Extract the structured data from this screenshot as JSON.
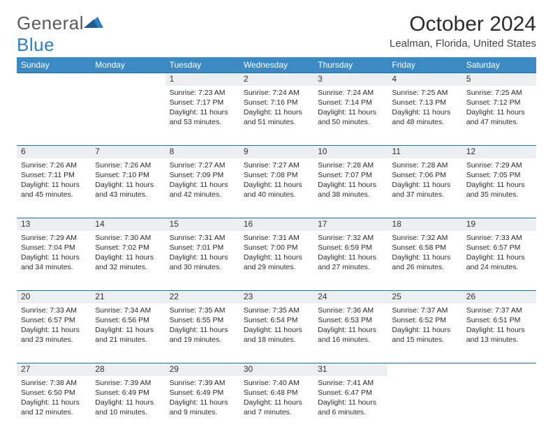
{
  "logo": {
    "word1": "General",
    "word2": "Blue"
  },
  "title": "October 2024",
  "location": "Lealman, Florida, United States",
  "theme": {
    "header_bg": "#3b8ac4",
    "header_text": "#ffffff",
    "daynum_bg": "#eceeef",
    "rule_color": "#2f6a99",
    "page_bg": "#ffffff",
    "text": "#2a2a2a",
    "logo_gray": "#5a5a5a",
    "logo_blue": "#2f7ec2"
  },
  "day_headers": [
    "Sunday",
    "Monday",
    "Tuesday",
    "Wednesday",
    "Thursday",
    "Friday",
    "Saturday"
  ],
  "weeks": [
    [
      null,
      null,
      {
        "n": "1",
        "sunrise": "Sunrise: 7:23 AM",
        "sunset": "Sunset: 7:17 PM",
        "day1": "Daylight: 11 hours",
        "day2": "and 53 minutes."
      },
      {
        "n": "2",
        "sunrise": "Sunrise: 7:24 AM",
        "sunset": "Sunset: 7:16 PM",
        "day1": "Daylight: 11 hours",
        "day2": "and 51 minutes."
      },
      {
        "n": "3",
        "sunrise": "Sunrise: 7:24 AM",
        "sunset": "Sunset: 7:14 PM",
        "day1": "Daylight: 11 hours",
        "day2": "and 50 minutes."
      },
      {
        "n": "4",
        "sunrise": "Sunrise: 7:25 AM",
        "sunset": "Sunset: 7:13 PM",
        "day1": "Daylight: 11 hours",
        "day2": "and 48 minutes."
      },
      {
        "n": "5",
        "sunrise": "Sunrise: 7:25 AM",
        "sunset": "Sunset: 7:12 PM",
        "day1": "Daylight: 11 hours",
        "day2": "and 47 minutes."
      }
    ],
    [
      {
        "n": "6",
        "sunrise": "Sunrise: 7:26 AM",
        "sunset": "Sunset: 7:11 PM",
        "day1": "Daylight: 11 hours",
        "day2": "and 45 minutes."
      },
      {
        "n": "7",
        "sunrise": "Sunrise: 7:26 AM",
        "sunset": "Sunset: 7:10 PM",
        "day1": "Daylight: 11 hours",
        "day2": "and 43 minutes."
      },
      {
        "n": "8",
        "sunrise": "Sunrise: 7:27 AM",
        "sunset": "Sunset: 7:09 PM",
        "day1": "Daylight: 11 hours",
        "day2": "and 42 minutes."
      },
      {
        "n": "9",
        "sunrise": "Sunrise: 7:27 AM",
        "sunset": "Sunset: 7:08 PM",
        "day1": "Daylight: 11 hours",
        "day2": "and 40 minutes."
      },
      {
        "n": "10",
        "sunrise": "Sunrise: 7:28 AM",
        "sunset": "Sunset: 7:07 PM",
        "day1": "Daylight: 11 hours",
        "day2": "and 38 minutes."
      },
      {
        "n": "11",
        "sunrise": "Sunrise: 7:28 AM",
        "sunset": "Sunset: 7:06 PM",
        "day1": "Daylight: 11 hours",
        "day2": "and 37 minutes."
      },
      {
        "n": "12",
        "sunrise": "Sunrise: 7:29 AM",
        "sunset": "Sunset: 7:05 PM",
        "day1": "Daylight: 11 hours",
        "day2": "and 35 minutes."
      }
    ],
    [
      {
        "n": "13",
        "sunrise": "Sunrise: 7:29 AM",
        "sunset": "Sunset: 7:04 PM",
        "day1": "Daylight: 11 hours",
        "day2": "and 34 minutes."
      },
      {
        "n": "14",
        "sunrise": "Sunrise: 7:30 AM",
        "sunset": "Sunset: 7:02 PM",
        "day1": "Daylight: 11 hours",
        "day2": "and 32 minutes."
      },
      {
        "n": "15",
        "sunrise": "Sunrise: 7:31 AM",
        "sunset": "Sunset: 7:01 PM",
        "day1": "Daylight: 11 hours",
        "day2": "and 30 minutes."
      },
      {
        "n": "16",
        "sunrise": "Sunrise: 7:31 AM",
        "sunset": "Sunset: 7:00 PM",
        "day1": "Daylight: 11 hours",
        "day2": "and 29 minutes."
      },
      {
        "n": "17",
        "sunrise": "Sunrise: 7:32 AM",
        "sunset": "Sunset: 6:59 PM",
        "day1": "Daylight: 11 hours",
        "day2": "and 27 minutes."
      },
      {
        "n": "18",
        "sunrise": "Sunrise: 7:32 AM",
        "sunset": "Sunset: 6:58 PM",
        "day1": "Daylight: 11 hours",
        "day2": "and 26 minutes."
      },
      {
        "n": "19",
        "sunrise": "Sunrise: 7:33 AM",
        "sunset": "Sunset: 6:57 PM",
        "day1": "Daylight: 11 hours",
        "day2": "and 24 minutes."
      }
    ],
    [
      {
        "n": "20",
        "sunrise": "Sunrise: 7:33 AM",
        "sunset": "Sunset: 6:57 PM",
        "day1": "Daylight: 11 hours",
        "day2": "and 23 minutes."
      },
      {
        "n": "21",
        "sunrise": "Sunrise: 7:34 AM",
        "sunset": "Sunset: 6:56 PM",
        "day1": "Daylight: 11 hours",
        "day2": "and 21 minutes."
      },
      {
        "n": "22",
        "sunrise": "Sunrise: 7:35 AM",
        "sunset": "Sunset: 6:55 PM",
        "day1": "Daylight: 11 hours",
        "day2": "and 19 minutes."
      },
      {
        "n": "23",
        "sunrise": "Sunrise: 7:35 AM",
        "sunset": "Sunset: 6:54 PM",
        "day1": "Daylight: 11 hours",
        "day2": "and 18 minutes."
      },
      {
        "n": "24",
        "sunrise": "Sunrise: 7:36 AM",
        "sunset": "Sunset: 6:53 PM",
        "day1": "Daylight: 11 hours",
        "day2": "and 16 minutes."
      },
      {
        "n": "25",
        "sunrise": "Sunrise: 7:37 AM",
        "sunset": "Sunset: 6:52 PM",
        "day1": "Daylight: 11 hours",
        "day2": "and 15 minutes."
      },
      {
        "n": "26",
        "sunrise": "Sunrise: 7:37 AM",
        "sunset": "Sunset: 6:51 PM",
        "day1": "Daylight: 11 hours",
        "day2": "and 13 minutes."
      }
    ],
    [
      {
        "n": "27",
        "sunrise": "Sunrise: 7:38 AM",
        "sunset": "Sunset: 6:50 PM",
        "day1": "Daylight: 11 hours",
        "day2": "and 12 minutes."
      },
      {
        "n": "28",
        "sunrise": "Sunrise: 7:39 AM",
        "sunset": "Sunset: 6:49 PM",
        "day1": "Daylight: 11 hours",
        "day2": "and 10 minutes."
      },
      {
        "n": "29",
        "sunrise": "Sunrise: 7:39 AM",
        "sunset": "Sunset: 6:49 PM",
        "day1": "Daylight: 11 hours",
        "day2": "and 9 minutes."
      },
      {
        "n": "30",
        "sunrise": "Sunrise: 7:40 AM",
        "sunset": "Sunset: 6:48 PM",
        "day1": "Daylight: 11 hours",
        "day2": "and 7 minutes."
      },
      {
        "n": "31",
        "sunrise": "Sunrise: 7:41 AM",
        "sunset": "Sunset: 6:47 PM",
        "day1": "Daylight: 11 hours",
        "day2": "and 6 minutes."
      },
      null,
      null
    ]
  ]
}
